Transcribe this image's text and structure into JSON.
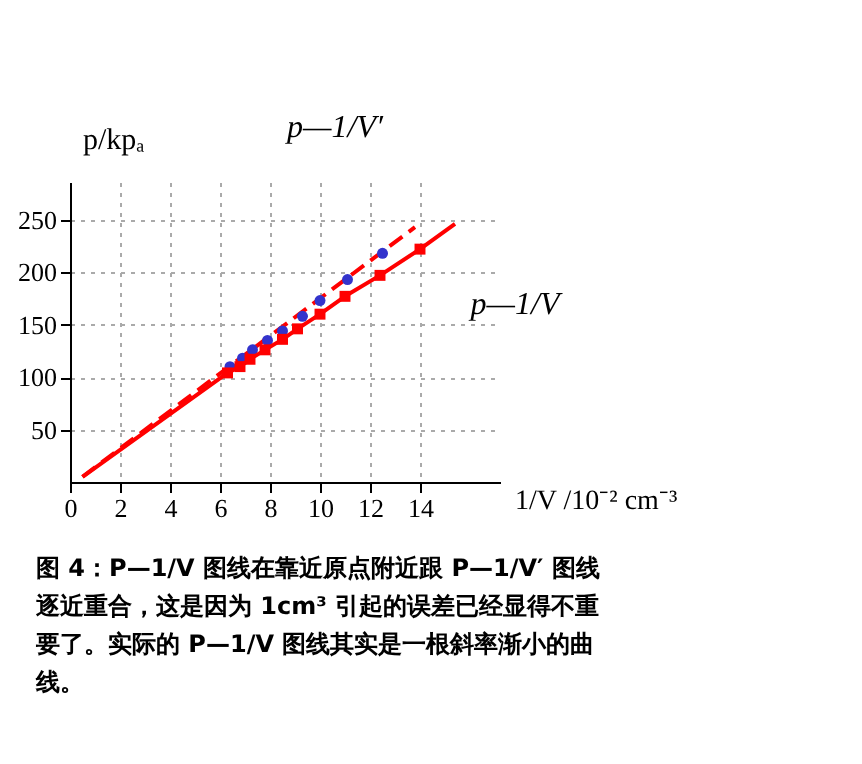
{
  "chart_data": {
    "type": "line",
    "xlabel": "1/V /10⁻² cm⁻³",
    "ylabel": "p/kpₐ",
    "xlim": [
      0,
      17.2
    ],
    "ylim": [
      0,
      286
    ],
    "xticks": [
      0,
      2,
      4,
      6,
      8,
      10,
      12,
      14
    ],
    "yticks": [
      50,
      100,
      150,
      200,
      250
    ],
    "grid": true,
    "series": [
      {
        "name": "p—1/V′",
        "color": "#ff0000",
        "line_style": "dashed",
        "x": [
          0.5,
          13.8
        ],
        "values": [
          5,
          243
        ]
      },
      {
        "type": "scatter",
        "color": "#3333cc",
        "marker": "circle",
        "x": [
          6.4,
          6.9,
          7.3,
          7.9,
          8.5,
          9.3,
          10.0,
          11.1,
          12.5
        ],
        "values": [
          110,
          118,
          126,
          135,
          144,
          158,
          173,
          193,
          218
        ]
      },
      {
        "name": "p—1/V",
        "color": "#ff0000",
        "line_style": "solid",
        "x": [
          0.5,
          6.3,
          6.8,
          7.2,
          7.8,
          8.5,
          9.1,
          10.0,
          11.0,
          12.4,
          14.0,
          15.4
        ],
        "values": [
          5,
          104,
          110,
          117,
          126,
          136,
          146,
          160,
          177,
          197,
          222,
          246
        ]
      },
      {
        "type": "scatter",
        "color": "#ff0000",
        "marker": "square",
        "x": [
          6.3,
          6.8,
          7.2,
          7.8,
          8.5,
          9.1,
          10.0,
          11.0,
          12.4,
          14.0
        ],
        "values": [
          104,
          110,
          117,
          126,
          136,
          146,
          160,
          177,
          197,
          222
        ]
      }
    ],
    "annotations": [
      "图 4：P—1/V 图线在靠近原点附近跟 P—1/V′ 图线逐近重合，这是因为 1cm³ 引起的误差已经显得不重要了。实际的 P—1/V 图线其实是一根斜率渐小的曲线。"
    ]
  }
}
